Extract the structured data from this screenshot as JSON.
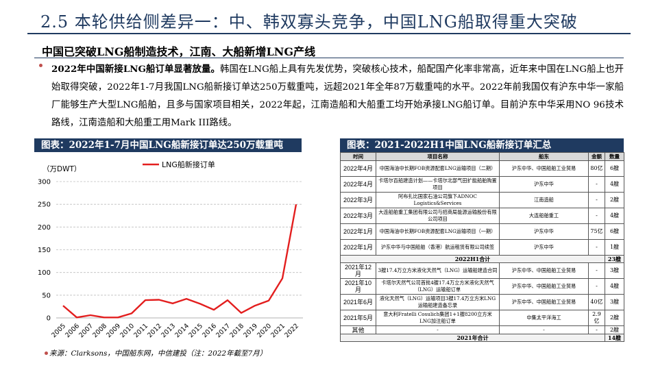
{
  "header": {
    "title": "2.5 本轮供给侧差异一：中、韩双寡头竞争，中国LNG船取得重大突破",
    "subtitle": "中国已突破LNG船制造技术，江南、大船新增LNG产线"
  },
  "paragraph": {
    "lead": "2022年中国新接LNG船订单显著放量。",
    "body": "韩国在LNG船上具有先发优势，突破核心技术，船配国产化率非常高，近年来中国在LNG船上也开始取得突破，2022年1-7月我国LNG船新接订单达250万载重吨，远超2021年全年87万载重吨的水平。2022年前我国仅有沪东中华一家船厂能够生产大型LNG船舶，且多与国家项目相关，2022年起，江南造船和大船重工均开始承接LNG船订单。目前沪东中华采用NO 96技术路线，江南造船和大船重工用Mark III路线。"
  },
  "left_panel": {
    "heading": "图表：2022年1-7月中国LNG船新接订单达250万载重吨",
    "source": "来源：Clarksons，中国船东网，中信建投（注：2022年截至7月）"
  },
  "chart_data": {
    "type": "line",
    "unit_label": "（万DWT）",
    "legend": "LNG船新接订单",
    "x": [
      "2005",
      "2006",
      "2007",
      "2008",
      "2009",
      "2010",
      "2011",
      "2012",
      "2013",
      "2014",
      "2015",
      "2016",
      "2017",
      "2018",
      "2019",
      "2020",
      "2021",
      "2022"
    ],
    "series": [
      {
        "name": "LNG船新接订单",
        "values": [
          27,
          1,
          6,
          1,
          1,
          10,
          39,
          40,
          32,
          42,
          31,
          18,
          39,
          11,
          27,
          38,
          87,
          250
        ],
        "color": "#e31e1e"
      }
    ],
    "yticks": [
      0,
      50,
      100,
      150,
      200,
      250,
      300
    ],
    "ylim": [
      0,
      300
    ],
    "grid": true,
    "legend_position": "top"
  },
  "right_panel": {
    "heading": "图表：2021-2022H1中国LNG船新接订单汇总",
    "columns": [
      "时间",
      "项目名称",
      "船东",
      "金额",
      "数量"
    ],
    "rows": [
      {
        "date": "2022年4月",
        "project": "中国海油中长期FOB资源配套LNG运输项目（二期）",
        "owner": "沪东中华、中国船舶工业贸易",
        "amount": "80亿",
        "qty": "6艘"
      },
      {
        "date": "2022年4月",
        "project": "卡塔尔百船建造计划——卡塔尔北部气田扩能船舶购置项目",
        "owner": "沪东中华",
        "amount": "-",
        "qty": "4艘"
      },
      {
        "date": "2022年3月",
        "project": "阿布扎比国家石油公司旗下ADNOC Logistics&Services",
        "owner": "江南造船",
        "amount": "-",
        "qty": "2艘"
      },
      {
        "date": "2022年3月",
        "project": "大连船舶重工集团有限公司与招商局能源运输股份有限公司项目",
        "owner": "大连船舶重工",
        "amount": "-",
        "qty": "4艘"
      },
      {
        "date": "2022年1月",
        "project": "中国海油中长期FOB资源配套LNG运输项目（一期）",
        "owner": "沪东中华",
        "amount": "75亿",
        "qty": "6艘"
      },
      {
        "date": "2022年1月",
        "project": "沪东中华与中国船舶（香港）航运租赁有限公司续签",
        "owner": "沪东中华",
        "amount": "-",
        "qty": "1艘"
      },
      {
        "type": "sum",
        "label": "2022H1合计",
        "qty": "23艘"
      },
      {
        "date": "2021年12月",
        "project": "3艘17.4万立方米液化天然气（LNG）运输船建造合同",
        "owner": "沪东中华、中国船舶工业贸易",
        "amount": "-",
        "qty": "3艘"
      },
      {
        "date": "2021年10月",
        "project": "卡塔尔天然气公司首批4艘17.4万立方米液化天然气（LNG）运输船订单",
        "owner": "沪东中华、中国船舶工业贸易",
        "amount": "-",
        "qty": "4艘"
      },
      {
        "date": "2021年6月",
        "project": "液化天然气（LNG）运输项目3艘17.4万立方米LNG运输船建造备忘录",
        "owner": "沪东中华、中国船舶工业贸易",
        "amount": "40亿",
        "qty": "3艘"
      },
      {
        "date": "2021年5月",
        "project": "意大利Fratelli Cosulich集团1+1艘8200立方米LNG加注船订单",
        "owner": "中集太平洋海工",
        "amount": "2.9亿",
        "qty": "2艘"
      },
      {
        "date": "其他",
        "project": "-",
        "owner": "-",
        "amount": "-",
        "qty": "2艘",
        "short": true
      },
      {
        "type": "sum",
        "label": "2021年合计",
        "qty": "14艘"
      }
    ]
  },
  "colors": {
    "navy": "#1f3a60",
    "line_red": "#e31e1e",
    "bullet_red": "#c0504d"
  }
}
